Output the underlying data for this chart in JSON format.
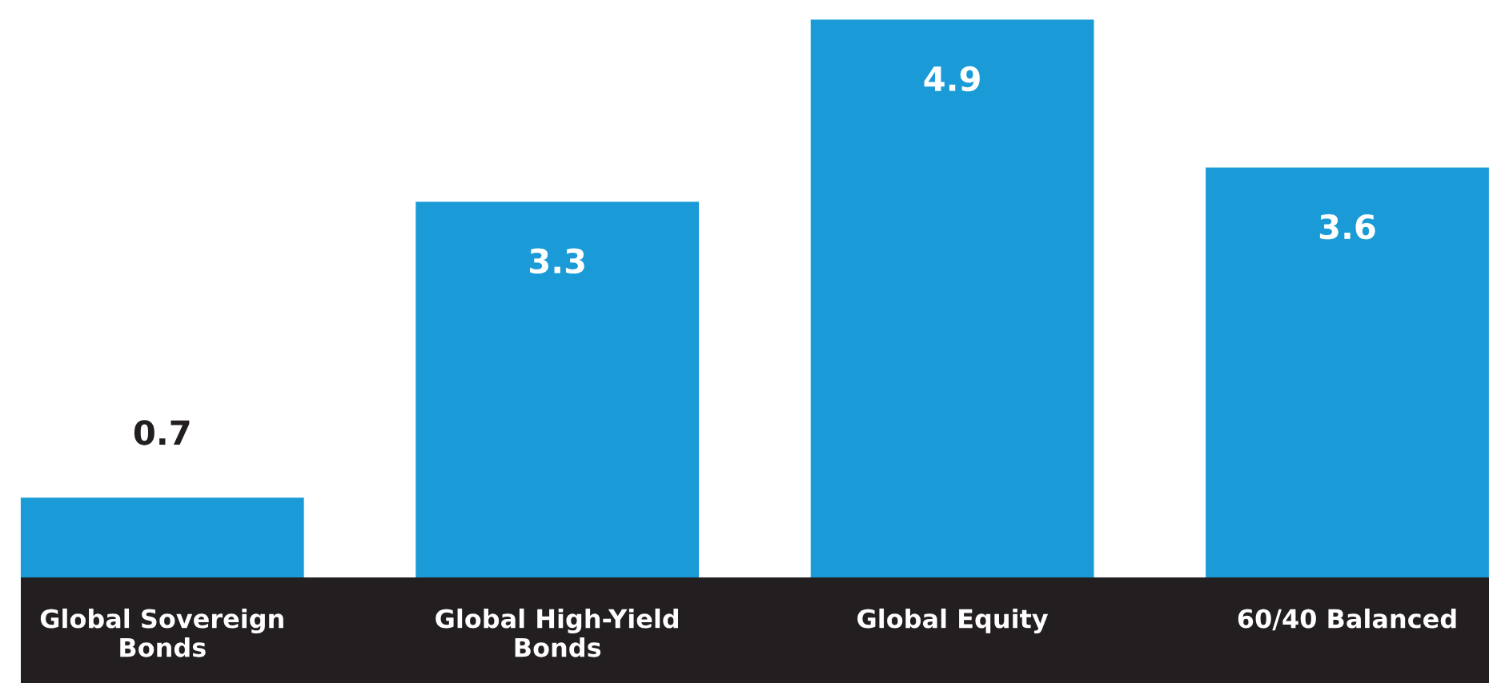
{
  "chart_data": {
    "type": "bar",
    "categories": [
      "Global Sovereign\nBonds",
      "Global High-Yield\nBonds",
      "Global Equity",
      "60/40 Balanced"
    ],
    "values": [
      0.7,
      3.3,
      4.9,
      3.6
    ],
    "color": "#1a9bd7",
    "data_labels": true
  }
}
